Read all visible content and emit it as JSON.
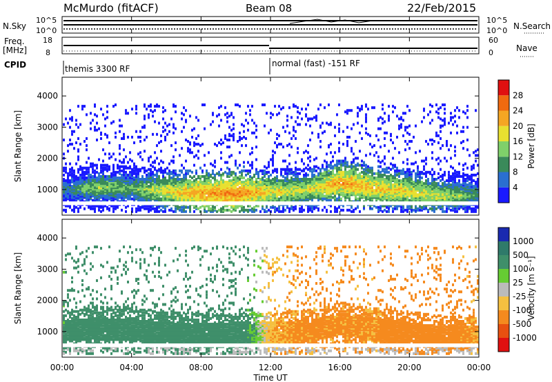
{
  "header": {
    "station": "McMurdo (fitACF)",
    "beam": "Beam 08",
    "date": "22/Feb/2015"
  },
  "strip_panels": {
    "nsky": {
      "label": "N.Sky",
      "ticks": [
        "10^5",
        "10^0"
      ]
    },
    "nsearch": {
      "label": "N.Search",
      "ticks": [
        "10^5",
        "10^0"
      ]
    },
    "freq": {
      "label_line1": "Freq.",
      "label_line2": "[MHz]",
      "ticks": [
        "18",
        "8"
      ]
    },
    "nave": {
      "label": "Nave",
      "ticks": [
        "60",
        "0"
      ]
    },
    "cpid": {
      "label": "CPID",
      "modes": [
        "themis 3300 RF",
        "normal (fast) -151 RF"
      ]
    }
  },
  "xaxis": {
    "label": "Time UT",
    "ticks": [
      "00:00",
      "04:00",
      "08:00",
      "12:00",
      "16:00",
      "20:00",
      "00:00"
    ]
  },
  "colorbars": {
    "power": {
      "label": "Power [dB]",
      "ticks": [
        "28",
        "24",
        "20",
        "16",
        "12",
        "8",
        "4"
      ],
      "colors": [
        "#1a1aff",
        "#2a6fd0",
        "#3a8a5a",
        "#7fd06a",
        "#e8e030",
        "#f5a623",
        "#f06a10",
        "#e01010"
      ]
    },
    "velocity": {
      "label": "Velocity [m s⁻¹]",
      "ticks": [
        "1000",
        "500",
        "100",
        "25",
        "-25",
        "-100",
        "-500",
        "-1000"
      ],
      "colors": [
        "#1a2ab0",
        "#2f7a6a",
        "#3f8f6a",
        "#66cc33",
        "#bbbbbb",
        "#f5c040",
        "#f58a1e",
        "#e85010",
        "#e01010"
      ]
    }
  },
  "chart_data": [
    {
      "type": "heatmap",
      "title": "Power",
      "ylabel": "Slant Range [km]",
      "xlabel": "Time UT",
      "ylim": [
        180,
        4600
      ],
      "xlim": [
        0,
        24
      ],
      "yticks": [
        1000,
        2000,
        3000,
        4000
      ],
      "colorbar": "Power [dB]",
      "summary_profile": {
        "x": [
          0,
          2,
          4,
          6,
          8,
          10,
          12,
          14,
          16,
          18,
          20,
          22,
          24
        ],
        "band_center_km": [
          950,
          1050,
          1000,
          900,
          850,
          850,
          900,
          950,
          1200,
          1000,
          900,
          750,
          800
        ],
        "peak_power_db": [
          12,
          18,
          16,
          22,
          26,
          28,
          22,
          20,
          26,
          24,
          22,
          20,
          14
        ]
      }
    },
    {
      "type": "heatmap",
      "title": "Velocity",
      "ylabel": "Slant Range [km]",
      "xlabel": "Time UT",
      "ylim": [
        180,
        4600
      ],
      "xlim": [
        0,
        24
      ],
      "yticks": [
        1000,
        2000,
        3000,
        4000
      ],
      "colorbar": "Velocity [m s⁻¹]",
      "summary_profile": {
        "x": [
          0,
          2,
          4,
          6,
          8,
          10,
          12,
          14,
          16,
          18,
          20,
          22,
          24
        ],
        "velocity_ms": [
          150,
          300,
          350,
          320,
          300,
          250,
          -80,
          -150,
          -150,
          -120,
          -300,
          -200,
          -100
        ]
      }
    }
  ]
}
